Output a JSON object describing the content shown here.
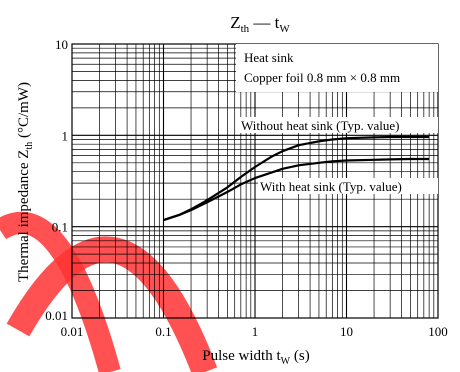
{
  "title": {
    "main": "Z",
    "sub": "th",
    "dash": " — ",
    "var": "t",
    "varsub": "W"
  },
  "watermark_color": "#ff3333",
  "chart_data": {
    "type": "line",
    "xscale": "log",
    "yscale": "log",
    "xlim": [
      0.01,
      100
    ],
    "ylim": [
      0.01,
      10
    ],
    "grid": true,
    "xticks": [
      0.01,
      0.1,
      1,
      10,
      100
    ],
    "xtick_labels": [
      "0.01",
      "0.1",
      "1",
      "10",
      "100"
    ],
    "yticks": [
      0.01,
      0.1,
      1,
      10
    ],
    "ytick_labels": [
      "0.01",
      "0.1",
      "1",
      "10"
    ],
    "xlabel": {
      "text": "Pulse width",
      "var": "t",
      "sub": "W",
      "unit": "(s)"
    },
    "ylabel": {
      "text": "Thermal impedance",
      "var": "Z",
      "sub": "th",
      "unit": "(°C/mW)"
    },
    "legend_box": {
      "line1": "Heat sink",
      "line2": "Copper foil 0.8 mm × 0.8 mm"
    },
    "series": [
      {
        "name": "Without heat sink (Typ. value)",
        "x": [
          0.1,
          0.15,
          0.2,
          0.3,
          0.5,
          0.7,
          1,
          1.5,
          2,
          3,
          5,
          7,
          10,
          20,
          30,
          50,
          80
        ],
        "y": [
          0.118,
          0.135,
          0.155,
          0.195,
          0.27,
          0.35,
          0.45,
          0.58,
          0.67,
          0.78,
          0.86,
          0.9,
          0.93,
          0.95,
          0.96,
          0.96,
          0.96
        ]
      },
      {
        "name": "With heat sink (Typ. value)",
        "x": [
          0.1,
          0.15,
          0.2,
          0.3,
          0.5,
          0.7,
          1,
          1.5,
          2,
          3,
          5,
          7,
          10,
          20,
          30,
          50,
          80
        ],
        "y": [
          0.118,
          0.135,
          0.152,
          0.185,
          0.24,
          0.29,
          0.34,
          0.39,
          0.43,
          0.47,
          0.5,
          0.52,
          0.53,
          0.54,
          0.545,
          0.55,
          0.55
        ]
      }
    ]
  }
}
